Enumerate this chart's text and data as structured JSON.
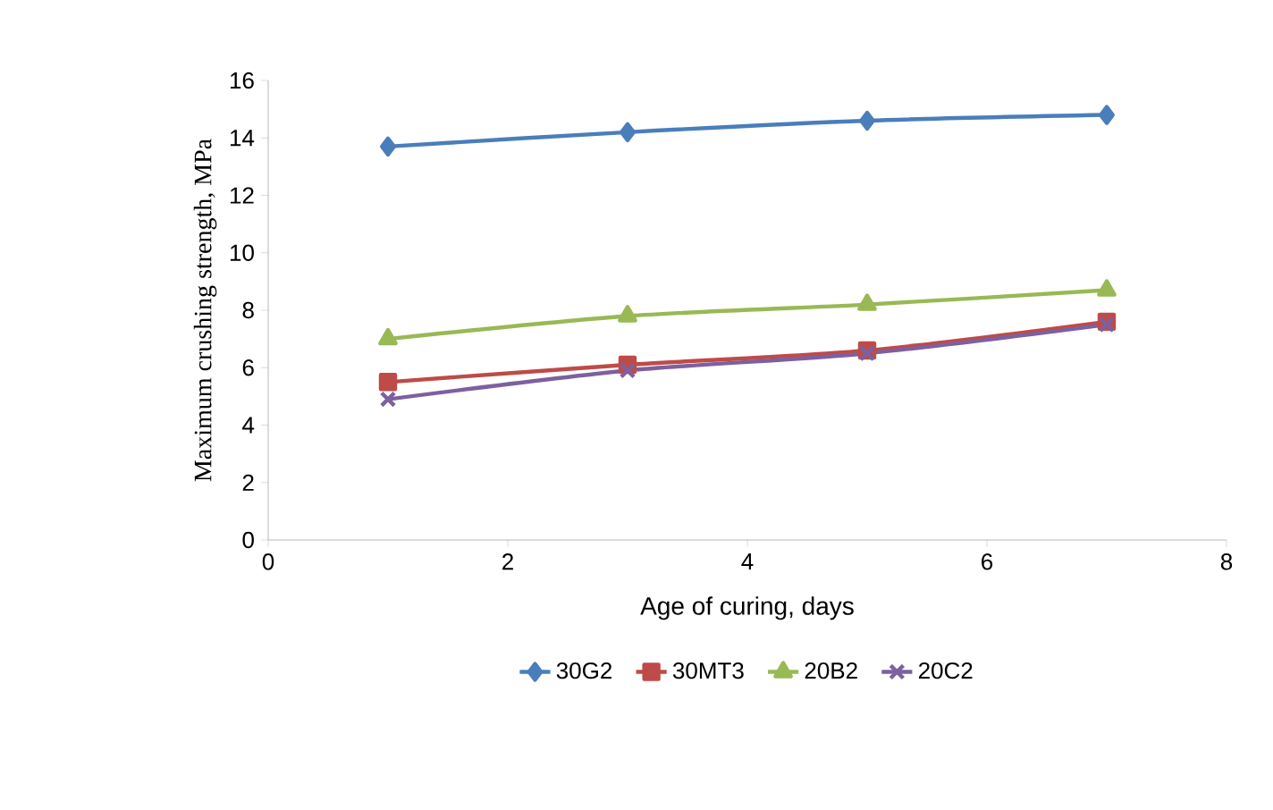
{
  "chart_data": {
    "type": "line",
    "xlabel": "Age of curing, days",
    "ylabel": "Maximum crushing strength, MPa",
    "x": [
      1,
      3,
      5,
      7
    ],
    "xlim": [
      0,
      8
    ],
    "xticks": [
      0,
      2,
      4,
      6,
      8
    ],
    "ylim": [
      0,
      16
    ],
    "yticks": [
      0,
      2,
      4,
      6,
      8,
      10,
      12,
      14,
      16
    ],
    "grid": false,
    "legend": "bottom",
    "series": [
      {
        "name": "30G2",
        "color": "#4a7ebb",
        "marker": "diamond",
        "values": [
          13.7,
          14.2,
          14.6,
          14.8
        ]
      },
      {
        "name": "30MT3",
        "color": "#be4b48",
        "marker": "square",
        "values": [
          5.5,
          6.1,
          6.6,
          7.6
        ]
      },
      {
        "name": "20B2",
        "color": "#98b954",
        "marker": "triangle",
        "values": [
          7.0,
          7.8,
          8.2,
          8.7
        ]
      },
      {
        "name": "20C2",
        "color": "#7d60a0",
        "marker": "cross",
        "values": [
          4.9,
          5.9,
          6.5,
          7.5
        ]
      }
    ]
  }
}
